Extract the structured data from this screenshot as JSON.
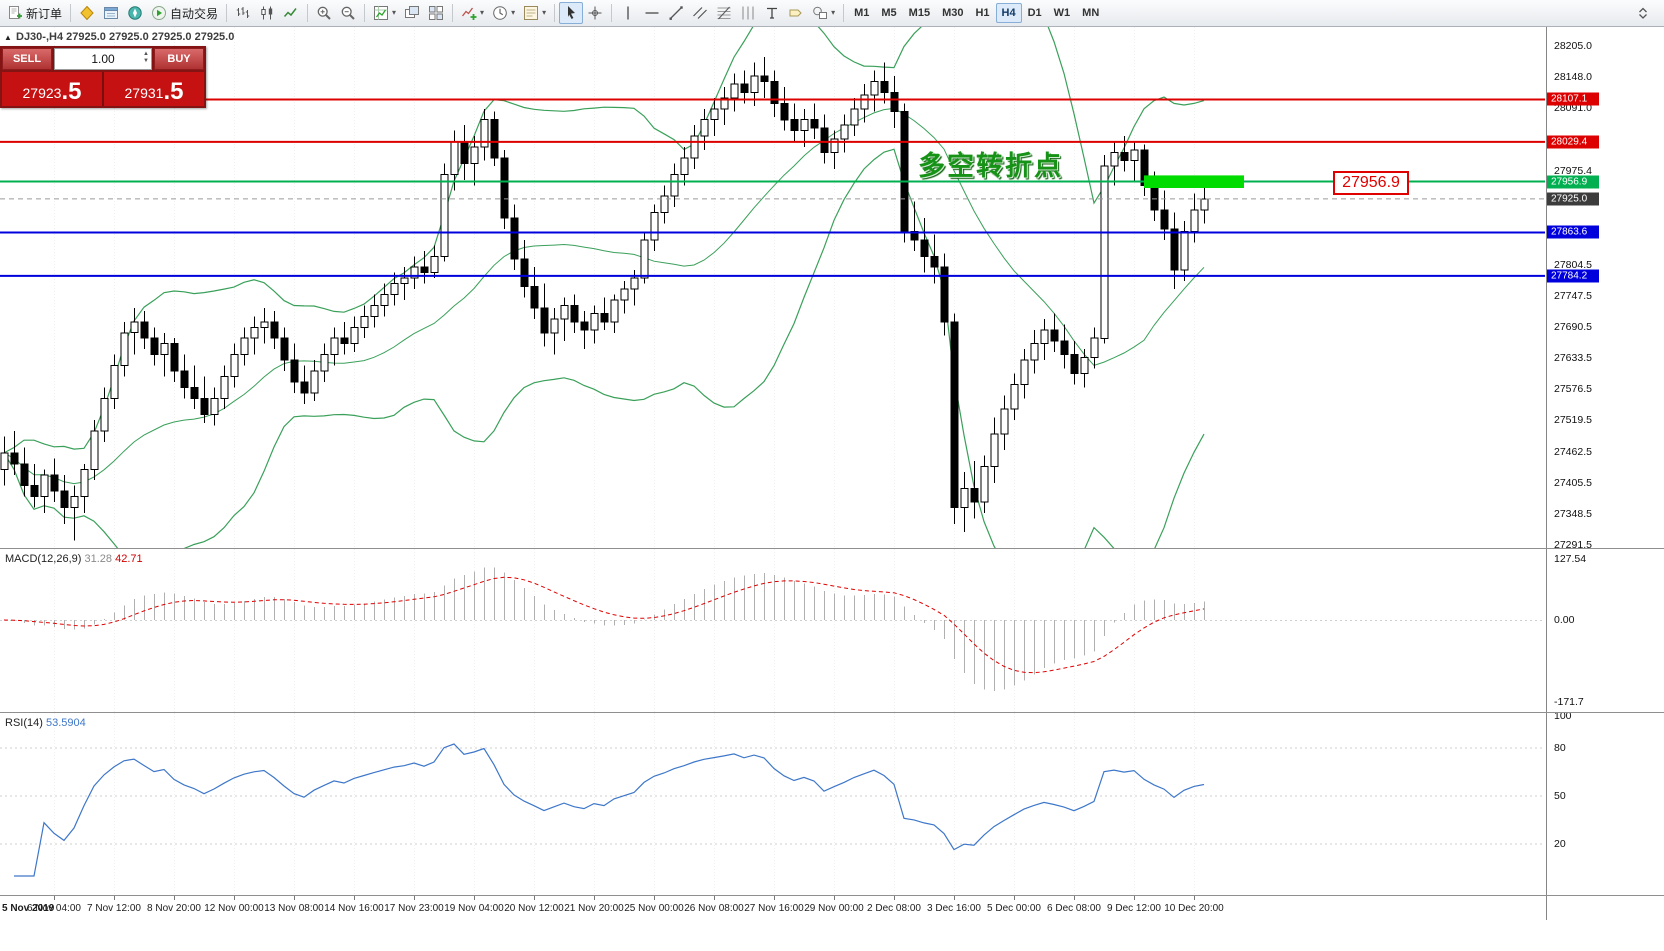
{
  "toolbar": {
    "groups": [
      {
        "items": [
          {
            "name": "new-order-button",
            "icon": "doc-new",
            "label": "新订单"
          }
        ]
      },
      {
        "items": [
          {
            "name": "market-watch-button",
            "icon": "market-watch"
          },
          {
            "name": "data-window-button",
            "icon": "data-window"
          },
          {
            "name": "navigator-button",
            "icon": "navigator"
          },
          {
            "name": "auto-trading-button",
            "icon": "play",
            "label": "自动交易"
          }
        ]
      },
      {
        "items": [
          {
            "name": "bar-chart-button",
            "icon": "chart-bars"
          },
          {
            "name": "candlestick-chart-button",
            "icon": "chart-candles"
          },
          {
            "name": "line-chart-button",
            "icon": "chart-line"
          }
        ]
      },
      {
        "items": [
          {
            "name": "zoom-in-button",
            "icon": "zoom-in"
          },
          {
            "name": "zoom-out-button",
            "icon": "zoom-out"
          }
        ]
      },
      {
        "items": [
          {
            "name": "new-chart-button",
            "icon": "new-chart",
            "caret": true
          },
          {
            "name": "cascade-windows-button",
            "icon": "cascade"
          },
          {
            "name": "tile-windows-button",
            "icon": "tile"
          }
        ]
      },
      {
        "items": [
          {
            "name": "indicators-button",
            "icon": "indicators",
            "caret": true
          },
          {
            "name": "periods-button",
            "icon": "clock",
            "caret": true
          },
          {
            "name": "templates-button",
            "icon": "template",
            "caret": true
          }
        ]
      },
      {
        "items": [
          {
            "name": "cursor-button",
            "icon": "cursor",
            "active": true
          },
          {
            "name": "crosshair-button",
            "icon": "crosshair"
          }
        ]
      },
      {
        "items": [
          {
            "name": "vertical-line-button",
            "icon": "vline"
          },
          {
            "name": "horizontal-line-button",
            "icon": "hline"
          },
          {
            "name": "trendline-button",
            "icon": "trendline"
          },
          {
            "name": "equidistant-channel-button",
            "icon": "channel"
          },
          {
            "name": "fibonacci-button",
            "icon": "fibo"
          },
          {
            "name": "cycle-lines-button",
            "icon": "cycles"
          },
          {
            "name": "text-button",
            "icon": "text-tool"
          },
          {
            "name": "label-button",
            "icon": "label-tool"
          },
          {
            "name": "shapes-button",
            "icon": "shapes",
            "caret": true
          }
        ]
      }
    ],
    "timeframes": [
      {
        "label": "M1"
      },
      {
        "label": "M5"
      },
      {
        "label": "M15"
      },
      {
        "label": "M30"
      },
      {
        "label": "H1"
      },
      {
        "label": "H4",
        "active": true
      },
      {
        "label": "D1"
      },
      {
        "label": "W1"
      },
      {
        "label": "MN"
      }
    ]
  },
  "chart": {
    "title": "DJ30-,H4 27925.0 27925.0 27925.0 27925.0",
    "annotation": "多空转折点",
    "price_tag": "27956.9",
    "order_panel": {
      "sell_label": "SELL",
      "buy_label": "BUY",
      "volume": "1.00",
      "sell_price": "27923",
      "sell_price_big": ".5",
      "buy_price": "27931",
      "buy_price_big": ".5"
    },
    "levels": [
      {
        "p": 28107.1,
        "color": "#dd0000",
        "w": 2
      },
      {
        "p": 28029.4,
        "color": "#dd0000",
        "w": 2
      },
      {
        "p": 27956.9,
        "color": "#00b050",
        "w": 2
      },
      {
        "p": 27925.0,
        "color": "#9a9a9a",
        "w": 1,
        "dash": true
      },
      {
        "p": 27863.6,
        "color": "#0000dd",
        "w": 2
      },
      {
        "p": 27784.2,
        "color": "#0000dd",
        "w": 2
      }
    ],
    "highlight_box": {
      "bar_start": 114,
      "bar_end": 124,
      "price_top": 27968,
      "price_bottom": 27945,
      "color": "#00dc00"
    },
    "axis": {
      "price_ticks": [
        "28205.0",
        "28148.0",
        "28091.0",
        "27975.4",
        "27804.5",
        "27747.5",
        "27690.5",
        "27633.5",
        "27576.5",
        "27519.5",
        "27462.5",
        "27405.5",
        "27348.5",
        "27291.5"
      ],
      "special_ticks": [
        {
          "label": "28107.1",
          "color": "#dd0000"
        },
        {
          "label": "28029.4",
          "color": "#dd0000"
        },
        {
          "label": "27956.9",
          "color": "#00b050"
        },
        {
          "label": "27925.0",
          "color": "#3c3c3c"
        },
        {
          "label": "27863.6",
          "color": "#0000dd"
        },
        {
          "label": "27784.2",
          "color": "#0000dd"
        }
      ],
      "time_origin": "5 Nov 2019",
      "time_ticks": [
        {
          "bar": 5,
          "label": "6 Nov 04:00"
        },
        {
          "bar": 11,
          "label": "7 Nov 12:00"
        },
        {
          "bar": 17,
          "label": "8 Nov 20:00"
        },
        {
          "bar": 23,
          "label": "12 Nov 00:00"
        },
        {
          "bar": 29,
          "label": "13 Nov 08:00"
        },
        {
          "bar": 35,
          "label": "14 Nov 16:00"
        },
        {
          "bar": 41,
          "label": "17 Nov 23:00"
        },
        {
          "bar": 47,
          "label": "19 Nov 04:00"
        },
        {
          "bar": 53,
          "label": "20 Nov 12:00"
        },
        {
          "bar": 59,
          "label": "21 Nov 20:00"
        },
        {
          "bar": 65,
          "label": "25 Nov 00:00"
        },
        {
          "bar": 71,
          "label": "26 Nov 08:00"
        },
        {
          "bar": 77,
          "label": "27 Nov 16:00"
        },
        {
          "bar": 83,
          "label": "29 Nov 00:00"
        },
        {
          "bar": 89,
          "label": "2 Dec 08:00"
        },
        {
          "bar": 95,
          "label": "3 Dec 16:00"
        },
        {
          "bar": 101,
          "label": "5 Dec 00:00"
        },
        {
          "bar": 107,
          "label": "6 Dec 08:00"
        },
        {
          "bar": 113,
          "label": "9 Dec 12:00"
        },
        {
          "bar": 119,
          "label": "10 Dec 20:00"
        }
      ]
    }
  },
  "macd": {
    "label": "MACD(12,26,9)",
    "value_main": "31.28",
    "value_signal": "42.71",
    "axis": [
      "127.54",
      "0.00",
      "-171.7"
    ]
  },
  "rsi": {
    "label": "RSI(14)",
    "value": "53.5904",
    "axis": [
      "100",
      "80",
      "50",
      "20"
    ],
    "levels": [
      80,
      50,
      20
    ]
  },
  "chart_data": {
    "type": "candlestick",
    "symbol": "DJ30-",
    "timeframe": "H4",
    "last_price": 27925.0,
    "bid": 27923.5,
    "ask": 27931.5,
    "price_range": [
      27291.5,
      28205.0
    ],
    "overlays": [
      {
        "name": "Bollinger Bands",
        "color": "#3aa05a"
      },
      {
        "name": "horizontal-levels",
        "values": [
          28107.1,
          28029.4,
          27956.9,
          27863.6,
          27784.2
        ]
      }
    ],
    "indicators": [
      {
        "name": "MACD",
        "params": "12,26,9",
        "values": [
          31.28,
          42.71
        ]
      },
      {
        "name": "RSI",
        "params": "14",
        "value": 53.5904
      }
    ],
    "ohlc": [
      [
        27430,
        27490,
        27400,
        27460
      ],
      [
        27460,
        27500,
        27420,
        27440
      ],
      [
        27440,
        27470,
        27380,
        27400
      ],
      [
        27400,
        27440,
        27360,
        27380
      ],
      [
        27380,
        27430,
        27350,
        27420
      ],
      [
        27420,
        27450,
        27370,
        27390
      ],
      [
        27390,
        27420,
        27330,
        27360
      ],
      [
        27360,
        27400,
        27300,
        27380
      ],
      [
        27380,
        27440,
        27350,
        27430
      ],
      [
        27430,
        27520,
        27410,
        27500
      ],
      [
        27500,
        27580,
        27480,
        27560
      ],
      [
        27560,
        27640,
        27540,
        27620
      ],
      [
        27620,
        27700,
        27600,
        27680
      ],
      [
        27680,
        27725,
        27640,
        27700
      ],
      [
        27700,
        27720,
        27650,
        27670
      ],
      [
        27670,
        27690,
        27620,
        27640
      ],
      [
        27640,
        27680,
        27600,
        27660
      ],
      [
        27660,
        27670,
        27590,
        27610
      ],
      [
        27610,
        27640,
        27560,
        27580
      ],
      [
        27580,
        27620,
        27540,
        27560
      ],
      [
        27560,
        27600,
        27515,
        27530
      ],
      [
        27530,
        27580,
        27510,
        27560
      ],
      [
        27560,
        27620,
        27540,
        27600
      ],
      [
        27600,
        27660,
        27580,
        27640
      ],
      [
        27640,
        27690,
        27620,
        27670
      ],
      [
        27670,
        27710,
        27640,
        27690
      ],
      [
        27690,
        27725,
        27660,
        27700
      ],
      [
        27700,
        27720,
        27650,
        27670
      ],
      [
        27670,
        27690,
        27610,
        27630
      ],
      [
        27630,
        27660,
        27570,
        27590
      ],
      [
        27590,
        27620,
        27550,
        27570
      ],
      [
        27570,
        27630,
        27555,
        27610
      ],
      [
        27610,
        27660,
        27590,
        27640
      ],
      [
        27640,
        27690,
        27620,
        27670
      ],
      [
        27670,
        27700,
        27640,
        27660
      ],
      [
        27660,
        27710,
        27645,
        27690
      ],
      [
        27690,
        27730,
        27670,
        27710
      ],
      [
        27710,
        27750,
        27690,
        27730
      ],
      [
        27730,
        27770,
        27710,
        27750
      ],
      [
        27750,
        27790,
        27730,
        27770
      ],
      [
        27770,
        27800,
        27740,
        27780
      ],
      [
        27780,
        27820,
        27760,
        27800
      ],
      [
        27800,
        27830,
        27770,
        27790
      ],
      [
        27790,
        27840,
        27780,
        27820
      ],
      [
        27820,
        27990,
        27810,
        27970
      ],
      [
        27970,
        28050,
        27940,
        28030
      ],
      [
        28030,
        28060,
        27960,
        27990
      ],
      [
        27990,
        28040,
        27950,
        28020
      ],
      [
        28020,
        28090,
        27995,
        28070
      ],
      [
        28070,
        28085,
        27985,
        28000
      ],
      [
        28000,
        28015,
        27870,
        27890
      ],
      [
        27890,
        27915,
        27795,
        27815
      ],
      [
        27815,
        27850,
        27745,
        27765
      ],
      [
        27765,
        27800,
        27705,
        27725
      ],
      [
        27725,
        27770,
        27655,
        27680
      ],
      [
        27680,
        27725,
        27640,
        27705
      ],
      [
        27705,
        27745,
        27665,
        27730
      ],
      [
        27730,
        27750,
        27680,
        27700
      ],
      [
        27700,
        27720,
        27650,
        27685
      ],
      [
        27685,
        27730,
        27660,
        27715
      ],
      [
        27715,
        27745,
        27685,
        27700
      ],
      [
        27700,
        27750,
        27680,
        27740
      ],
      [
        27740,
        27775,
        27715,
        27760
      ],
      [
        27760,
        27795,
        27730,
        27780
      ],
      [
        27780,
        27865,
        27770,
        27850
      ],
      [
        27850,
        27915,
        27830,
        27900
      ],
      [
        27900,
        27950,
        27880,
        27930
      ],
      [
        27930,
        27990,
        27910,
        27970
      ],
      [
        27970,
        28020,
        27950,
        28000
      ],
      [
        28000,
        28060,
        27980,
        28040
      ],
      [
        28040,
        28090,
        28015,
        28070
      ],
      [
        28070,
        28110,
        28040,
        28090
      ],
      [
        28090,
        28130,
        28060,
        28110
      ],
      [
        28110,
        28155,
        28085,
        28135
      ],
      [
        28135,
        28160,
        28100,
        28120
      ],
      [
        28120,
        28175,
        28095,
        28150
      ],
      [
        28150,
        28185,
        28110,
        28140
      ],
      [
        28140,
        28160,
        28075,
        28100
      ],
      [
        28100,
        28130,
        28050,
        28070
      ],
      [
        28070,
        28100,
        28030,
        28050
      ],
      [
        28050,
        28090,
        28020,
        28070
      ],
      [
        28070,
        28100,
        28035,
        28055
      ],
      [
        28055,
        28080,
        27990,
        28010
      ],
      [
        28010,
        28050,
        27980,
        28035
      ],
      [
        28035,
        28080,
        28010,
        28060
      ],
      [
        28060,
        28110,
        28040,
        28090
      ],
      [
        28090,
        28135,
        28065,
        28115
      ],
      [
        28115,
        28160,
        28085,
        28140
      ],
      [
        28140,
        28175,
        28100,
        28120
      ],
      [
        28120,
        28150,
        28055,
        28085
      ],
      [
        28085,
        28100,
        27845,
        27865
      ],
      [
        27865,
        27920,
        27830,
        27850
      ],
      [
        27850,
        27890,
        27790,
        27820
      ],
      [
        27820,
        27860,
        27770,
        27800
      ],
      [
        27800,
        27825,
        27675,
        27700
      ],
      [
        27700,
        27715,
        27330,
        27360
      ],
      [
        27360,
        27425,
        27315,
        27395
      ],
      [
        27395,
        27445,
        27340,
        27370
      ],
      [
        27370,
        27455,
        27350,
        27435
      ],
      [
        27435,
        27525,
        27405,
        27495
      ],
      [
        27495,
        27565,
        27465,
        27540
      ],
      [
        27540,
        27605,
        27520,
        27585
      ],
      [
        27585,
        27650,
        27560,
        27630
      ],
      [
        27630,
        27685,
        27605,
        27660
      ],
      [
        27660,
        27705,
        27630,
        27685
      ],
      [
        27685,
        27715,
        27645,
        27665
      ],
      [
        27665,
        27695,
        27615,
        27640
      ],
      [
        27640,
        27665,
        27585,
        27605
      ],
      [
        27605,
        27650,
        27580,
        27635
      ],
      [
        27635,
        27690,
        27615,
        27670
      ],
      [
        27670,
        28005,
        27660,
        27985
      ],
      [
        27985,
        28030,
        27950,
        28010
      ],
      [
        28010,
        28040,
        27975,
        27995
      ],
      [
        27995,
        28030,
        27955,
        28015
      ],
      [
        28015,
        28025,
        27930,
        27950
      ],
      [
        27950,
        27975,
        27885,
        27905
      ],
      [
        27905,
        27940,
        27850,
        27870
      ],
      [
        27870,
        27900,
        27760,
        27795
      ],
      [
        27795,
        27885,
        27775,
        27865
      ],
      [
        27865,
        27935,
        27845,
        27905
      ],
      [
        27905,
        27950,
        27880,
        27925
      ]
    ]
  }
}
